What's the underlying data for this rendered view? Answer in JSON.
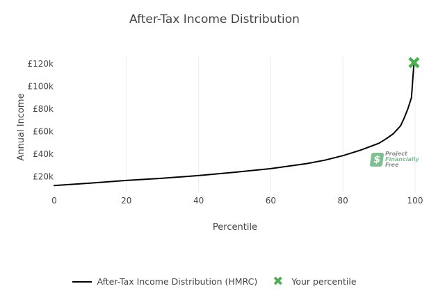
{
  "chart_data": {
    "type": "line",
    "title": "After-Tax Income Distribution",
    "xlabel": "Percentile",
    "ylabel": "Annual Income",
    "xlim": [
      0,
      100
    ],
    "ylim": [
      6000,
      126000
    ],
    "x_ticks": [
      0,
      20,
      40,
      60,
      80,
      100
    ],
    "y_ticks": [
      20000,
      40000,
      60000,
      80000,
      100000,
      120000
    ],
    "y_tick_labels": [
      "£20k",
      "£40k",
      "£60k",
      "£80k",
      "£100k",
      "£120k"
    ],
    "grid": {
      "vertical": true,
      "horizontal": false
    },
    "legend_position": "bottom",
    "series": [
      {
        "name": "After-Tax Income Distribution (HMRC)",
        "kind": "line",
        "color": "#000000",
        "x": [
          0,
          10,
          20,
          30,
          40,
          50,
          60,
          65,
          70,
          75,
          80,
          85,
          90,
          92,
          94,
          96,
          97,
          98,
          99
        ],
        "y": [
          12000,
          14200,
          16500,
          18500,
          20800,
          23800,
          27000,
          29200,
          31500,
          34500,
          38500,
          43500,
          49500,
          53500,
          58000,
          65000,
          72000,
          80000,
          90000
        ]
      },
      {
        "name": "Your percentile",
        "kind": "marker",
        "marker": "x",
        "color": "#4caf50",
        "x": [
          99.7
        ],
        "y": [
          121000
        ]
      }
    ]
  },
  "watermark": {
    "line1": "Project",
    "line2": "Financially",
    "line3": "Free"
  }
}
